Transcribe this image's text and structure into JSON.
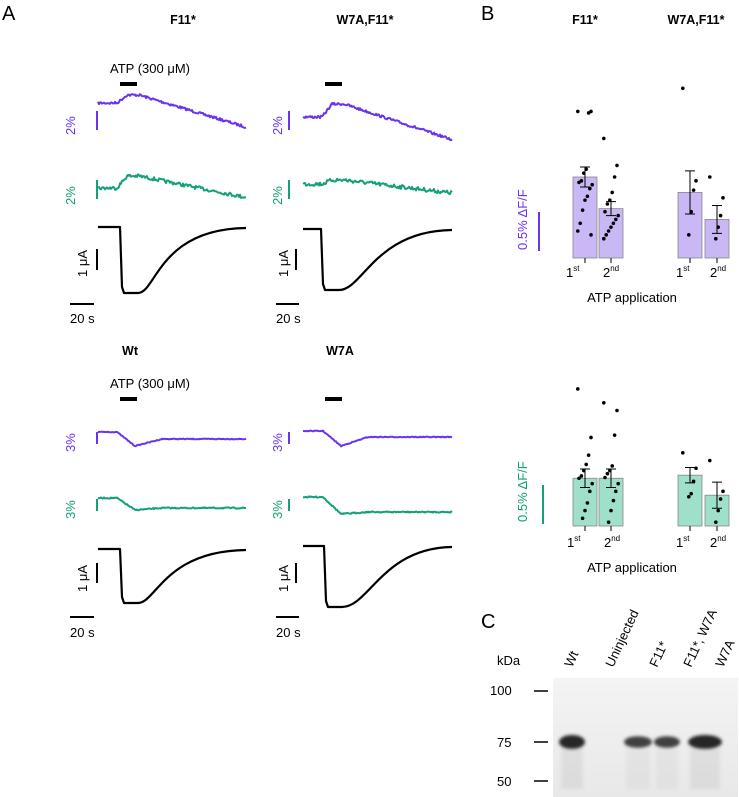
{
  "colors": {
    "purple": "#6a33ec",
    "green": "#13a07a",
    "black": "#000000",
    "bar_purple_fill": "#c9b8f5",
    "bar_green_fill": "#9fe0cb"
  },
  "panel_a": {
    "letter": "A",
    "stimulus_label": "ATP (300 μM)",
    "rows": [
      {
        "columns": [
          {
            "title": "F11*",
            "scale_purple": "2%",
            "scale_green": "2%",
            "scale_current": "1 μA",
            "scale_time": "20 s",
            "show_stimulus_label": true
          },
          {
            "title": "W7A,F11*",
            "scale_purple": "2%",
            "scale_green": "2%",
            "scale_current": "1 μA",
            "scale_time": "20 s",
            "show_stimulus_label": false
          }
        ]
      },
      {
        "columns": [
          {
            "title": "Wt",
            "scale_purple": "3%",
            "scale_green": "3%",
            "scale_current": "1 μA",
            "scale_time": "20 s",
            "show_stimulus_label": true
          },
          {
            "title": "W7A",
            "scale_purple": "3%",
            "scale_green": "3%",
            "scale_current": "1 μA",
            "scale_time": "20 s",
            "show_stimulus_label": false
          }
        ]
      }
    ]
  },
  "panel_b": {
    "letter": "B",
    "col_titles": [
      "F11*",
      "W7A,F11*"
    ],
    "scale_label": "0.5% ΔF/F",
    "xlabel": "ATP application",
    "tick_labels": [
      {
        "base": "1",
        "sup": "st"
      },
      {
        "base": "2",
        "sup": "nd"
      },
      {
        "base": "1",
        "sup": "st"
      },
      {
        "base": "2",
        "sup": "nd"
      }
    ]
  },
  "chart_data": [
    {
      "type": "bar",
      "categories": [
        "F11* 1st",
        "F11* 2nd",
        "W7A,F11* 1st",
        "W7A,F11* 2nd"
      ],
      "series": [
        {
          "values": [
            1.05,
            0.64,
            0.85,
            0.5
          ]
        }
      ],
      "error": [
        0.13,
        0.09,
        0.28,
        0.18
      ],
      "points": [
        [
          1.9,
          1.9,
          1.88,
          1.15,
          1.1,
          1.0,
          0.98,
          0.95,
          0.9,
          0.8,
          0.75,
          0.62,
          0.45,
          0.35,
          0.3
        ],
        [
          1.55,
          1.2,
          1.05,
          0.85,
          0.75,
          0.7,
          0.6,
          0.55,
          0.5,
          0.45,
          0.4,
          0.35,
          0.3,
          0.25
        ],
        [
          2.2,
          1.0,
          0.88,
          0.6,
          0.3
        ],
        [
          1.05,
          0.78,
          0.55,
          0.4,
          0.25
        ]
      ],
      "ylim": [
        0,
        2.45
      ],
      "scale_bar": "0.5% ΔF/F",
      "xlabel": "ATP application"
    },
    {
      "type": "bar",
      "categories": [
        "F11* 1st",
        "F11* 2nd",
        "W7A,F11* 1st",
        "W7A,F11* 2nd"
      ],
      "series": [
        {
          "values": [
            0.62,
            0.62,
            0.66,
            0.4
          ]
        }
      ],
      "error": [
        0.12,
        0.12,
        0.1,
        0.17
      ],
      "points": [
        [
          1.78,
          1.15,
          0.92,
          0.8,
          0.72,
          0.65,
          0.62,
          0.55,
          0.45,
          0.3,
          0.2,
          0.1
        ],
        [
          1.6,
          1.5,
          1.18,
          0.78,
          0.72,
          0.68,
          0.63,
          0.55,
          0.45,
          0.33,
          0.2,
          0.05
        ],
        [
          0.95,
          0.75,
          0.58,
          0.42,
          0.38
        ],
        [
          0.85,
          0.45,
          0.35,
          0.2,
          0.05
        ]
      ],
      "ylim": [
        0,
        2.0
      ],
      "scale_bar": "0.5% ΔF/F",
      "xlabel": "ATP application"
    }
  ],
  "panel_c": {
    "letter": "C",
    "unit_label": "kDa",
    "lane_labels": [
      "Wt",
      "Uninjected",
      "F11*",
      "F11*, W7A",
      "W7A"
    ],
    "markers": [
      "100",
      "75",
      "50"
    ],
    "marker_values": [
      100,
      75,
      50
    ],
    "band_intensity": [
      1.0,
      0.0,
      0.6,
      0.6,
      1.0
    ]
  }
}
